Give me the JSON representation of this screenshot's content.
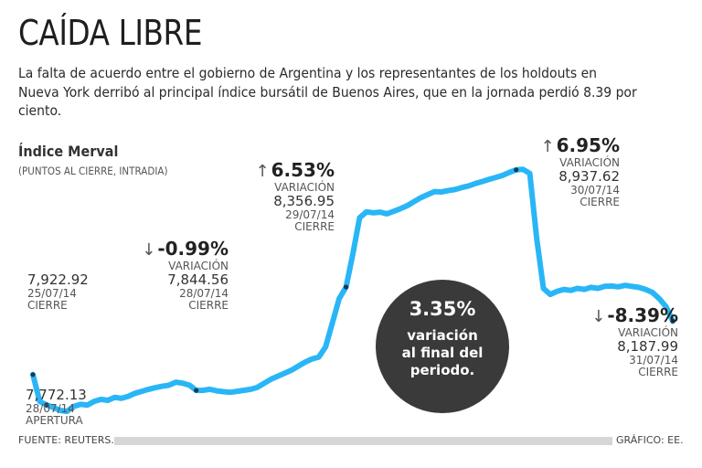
{
  "title": "CAÍDA LIBRE",
  "intro": "La falta de acuerdo entre el gobierno de Argentina y los representantes de los holdouts en Nueva York derribó al principal índice bursátil de Buenos Aires, que en la jornada perdió 8.39 por ciento.",
  "index_label": "Índice Merval",
  "index_sub": "(PUNTOS AL CIERRE, INTRADIA)",
  "bubble": {
    "pct": "3.35%",
    "text_1": "variación",
    "text_2": "al final del",
    "text_3": "periodo."
  },
  "annotations": {
    "open": {
      "value": "7,772.13",
      "date": "28/07/14",
      "label": "APERTURA"
    },
    "close_0725": {
      "value": "7,922.92",
      "date": "25/07/14",
      "label": "CIERRE"
    },
    "close_0728": {
      "arrow": "↓",
      "pct": "-0.99%",
      "variation": "VARIACIÓN",
      "value": "7,844.56",
      "date": "28/07/14",
      "label": "CIERRE"
    },
    "close_0729": {
      "arrow": "↑",
      "pct": "6.53%",
      "variation": "VARIACIÓN",
      "value": "8,356.95",
      "date": "29/07/14",
      "label": "CIERRE"
    },
    "close_0730": {
      "arrow": "↑",
      "pct": "6.95%",
      "variation": "VARIACIÓN",
      "value": "8,937.62",
      "date": "30/07/14",
      "label": "CIERRE"
    },
    "close_0731": {
      "arrow": "↓",
      "pct": "-8.39%",
      "variation": "VARIACIÓN",
      "value": "8,187.99",
      "date": "31/07/14",
      "label": "CIERRE"
    }
  },
  "source": "FUENTE: REUTERS.",
  "credit": "GRÁFICO: EE.",
  "colors": {
    "line": "#29b6f6",
    "marker": "#1a3a5a",
    "bubble": "#3a3a3a",
    "footer_bar": "#d6d6d6"
  },
  "chart_data": {
    "type": "line",
    "title": "Índice Merval",
    "subtitle": "(PUNTOS AL CIERRE, INTRADIA)",
    "xlabel": "",
    "ylabel": "",
    "ylim": [
      7650,
      9100
    ],
    "series": [
      {
        "values": [
          7922.92,
          7790,
          7772.13,
          7760,
          7745,
          7740,
          7765,
          7775,
          7772,
          7790,
          7800,
          7795,
          7810,
          7805,
          7815,
          7830,
          7840,
          7850,
          7858,
          7865,
          7870,
          7885,
          7880,
          7870,
          7844.56,
          7845,
          7850,
          7842,
          7838,
          7835,
          7840,
          7845,
          7850,
          7860,
          7880,
          7900,
          7915,
          7930,
          7945,
          7965,
          7985,
          8000,
          8010,
          8060,
          8180,
          8300,
          8356.95,
          8520,
          8700,
          8730,
          8725,
          8728,
          8720,
          8732,
          8745,
          8760,
          8780,
          8800,
          8815,
          8830,
          8828,
          8835,
          8840,
          8850,
          8858,
          8870,
          8880,
          8890,
          8900,
          8910,
          8925,
          8937.62,
          8940,
          8920,
          8600,
          8350,
          8320,
          8335,
          8345,
          8340,
          8350,
          8345,
          8355,
          8350,
          8360,
          8362,
          8358,
          8365,
          8360,
          8355,
          8345,
          8330,
          8300,
          8260,
          8187.99
        ]
      }
    ],
    "marked_points": [
      {
        "index": 0,
        "value": 7922.92,
        "label": "25/07/14 CIERRE"
      },
      {
        "index": 2,
        "value": 7772.13,
        "label": "28/07/14 APERTURA"
      },
      {
        "index": 24,
        "value": 7844.56,
        "label": "28/07/14 CIERRE"
      },
      {
        "index": 46,
        "value": 8356.95,
        "label": "29/07/14 CIERRE"
      },
      {
        "index": 71,
        "value": 8937.62,
        "label": "30/07/14 CIERRE"
      },
      {
        "index": 94,
        "value": 8187.99,
        "label": "31/07/14 CIERRE"
      }
    ],
    "grid": false,
    "legend": "none"
  }
}
